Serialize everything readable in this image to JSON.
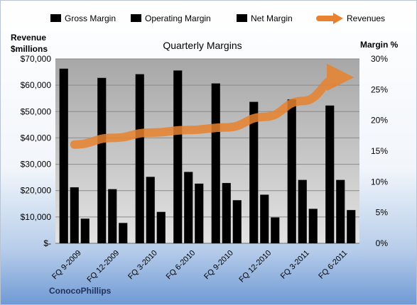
{
  "chart_data": {
    "type": "bar",
    "title": "Quarterly Margins",
    "company": "ConocoPhillips",
    "categories": [
      "FQ 9-2009",
      "FQ 12-2009",
      "FQ 3-2010",
      "FQ 6-2010",
      "FQ 9-2010",
      "FQ 12-2010",
      "FQ 3-2011",
      "FQ 6-2011"
    ],
    "left_axis": {
      "label_line1": "Revenue",
      "label_line2": "$millions",
      "ylim": [
        0,
        70000
      ],
      "ticks": [
        "$-",
        "$10,000",
        "$20,000",
        "$30,000",
        "$40,000",
        "$50,000",
        "$60,000",
        "$70,000"
      ]
    },
    "right_axis": {
      "label": "Margin %",
      "ylim": [
        0,
        30
      ],
      "ticks": [
        "0%",
        "5%",
        "10%",
        "15%",
        "20%",
        "25%",
        "30%"
      ]
    },
    "series": [
      {
        "name": "Gross Margin",
        "axis": "right",
        "color": "#1e7a3a",
        "values": [
          28.4,
          26.9,
          27.5,
          28.1,
          26.0,
          23.0,
          23.4,
          22.4
        ]
      },
      {
        "name": "Operating Margin",
        "axis": "right",
        "color": "#3f66a8",
        "values": [
          9.1,
          8.8,
          10.8,
          11.6,
          9.8,
          7.9,
          10.3,
          10.3
        ]
      },
      {
        "name": "Net Margin",
        "axis": "right",
        "color": "#8fae3c",
        "values": [
          4.0,
          3.3,
          5.1,
          9.7,
          7.0,
          4.2,
          5.6,
          5.4
        ]
      },
      {
        "name": "Revenues",
        "axis": "left",
        "color": "#e8822e",
        "values": [
          37500,
          40000,
          42000,
          43000,
          44000,
          48000,
          54000,
          63000
        ]
      }
    ],
    "grid": true,
    "legend": "top"
  }
}
